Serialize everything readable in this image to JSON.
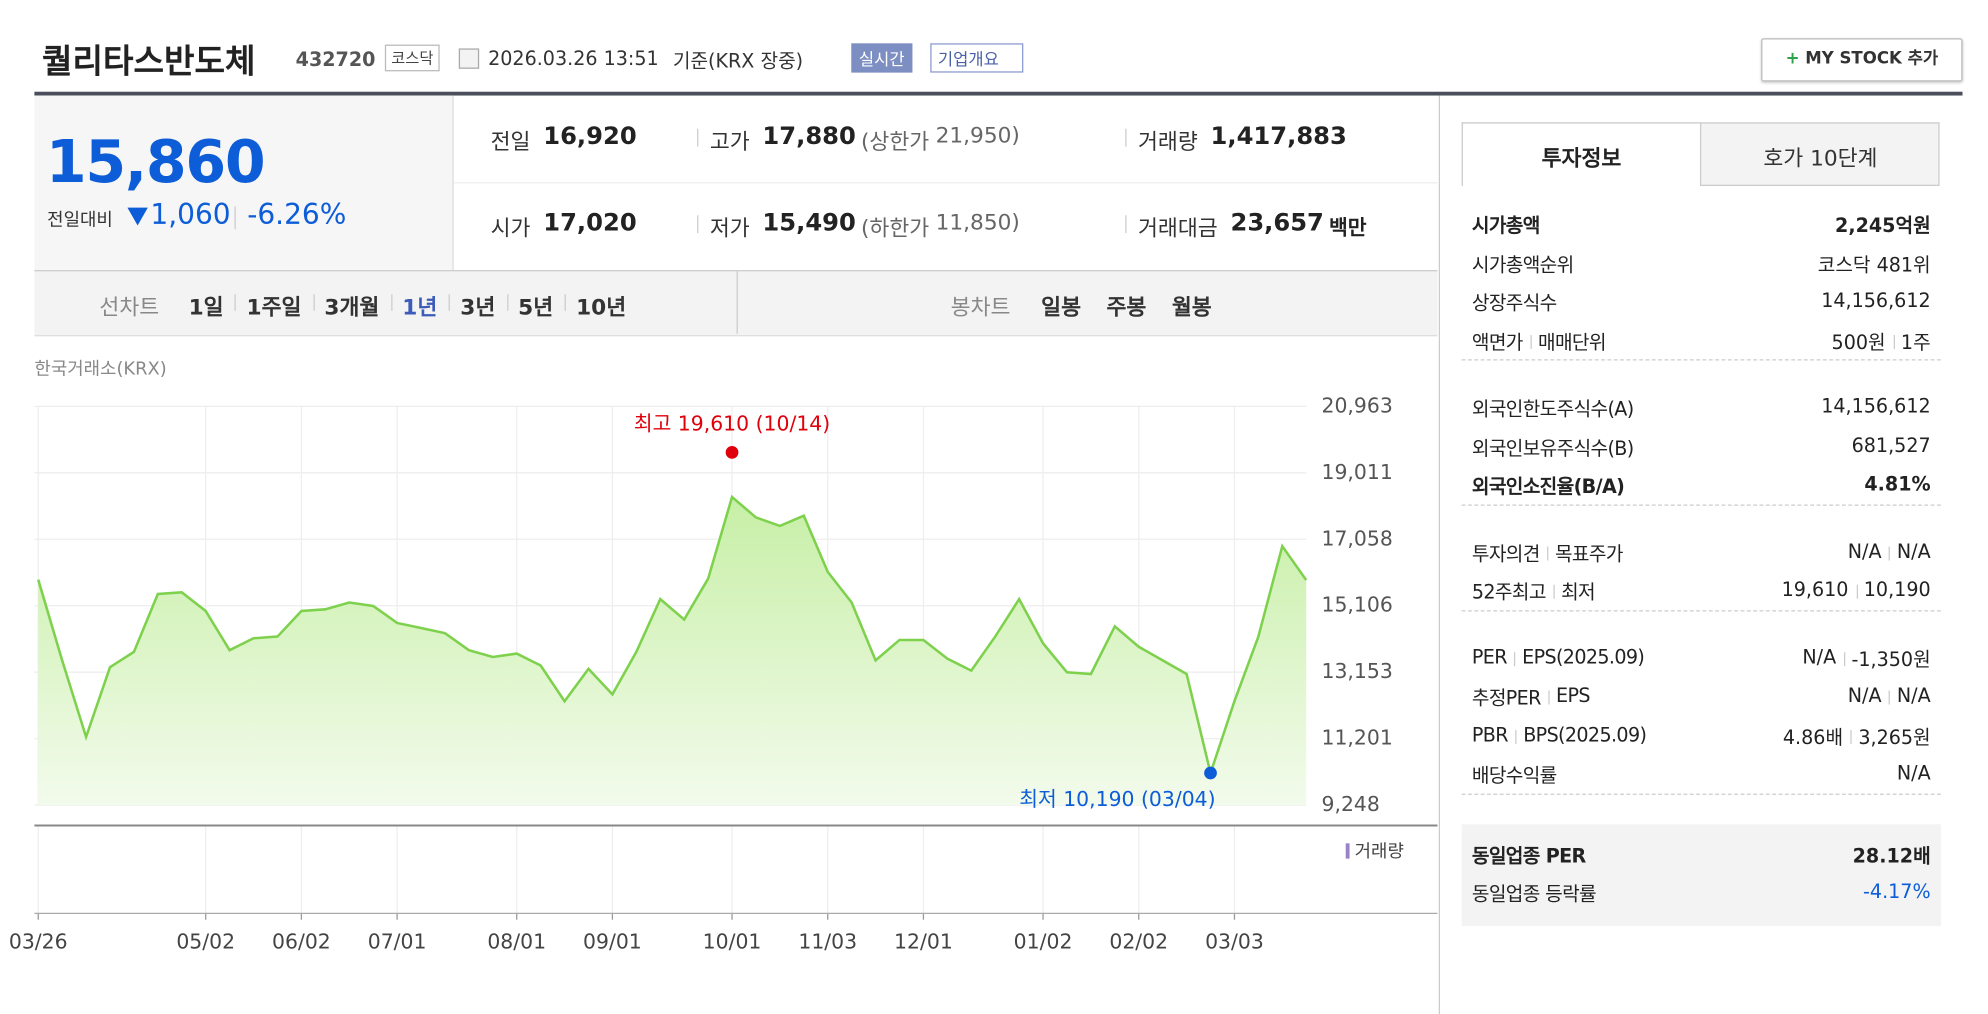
{
  "header": {
    "name": "퀄리타스반도체",
    "code": "432720",
    "market": "코스닥",
    "datetime": "2026.03.26 13:51",
    "basis": "기준(KRX 장중)",
    "realtime": "실시간",
    "company_info": "기업개요",
    "my_stock": "MY STOCK 추가"
  },
  "price": {
    "current": "15,860",
    "change_label": "전일대비",
    "change": "1,060",
    "change_pct": "-6.26%"
  },
  "summary": [
    [
      {
        "label": "전일",
        "value": "16,920"
      },
      {
        "label": "고가",
        "value": "17,880",
        "sub_label": "상한가",
        "sub_value": "21,950"
      },
      {
        "label": "거래량",
        "value": "1,417,883"
      }
    ],
    [
      {
        "label": "시가",
        "value": "17,020"
      },
      {
        "label": "저가",
        "value": "15,490",
        "sub_label": "하한가",
        "sub_value": "11,850"
      },
      {
        "label": "거래대금",
        "value": "23,657",
        "unit": "백만"
      }
    ]
  ],
  "chart_tabs": {
    "line_label": "선차트",
    "line": [
      "1일",
      "1주일",
      "3개월",
      "1년",
      "3년",
      "5년",
      "10년"
    ],
    "candle_label": "봉차트",
    "candle": [
      "일봉",
      "주봉",
      "월봉"
    ]
  },
  "chart_data": {
    "type": "line",
    "source": "한국거래소(KRX)",
    "color": "#7ed14d",
    "grid": true,
    "categories": [
      "03/26",
      null,
      null,
      null,
      null,
      null,
      null,
      "05/02",
      null,
      null,
      null,
      "06/02",
      null,
      null,
      null,
      "07/01",
      null,
      null,
      null,
      null,
      "08/01",
      null,
      null,
      null,
      "09/01",
      null,
      null,
      null,
      null,
      "10/01",
      null,
      null,
      null,
      "11/03",
      null,
      null,
      null,
      "12/01",
      null,
      null,
      null,
      null,
      "01/02",
      null,
      null,
      null,
      "02/02",
      null,
      null,
      null,
      "03/03",
      null,
      null,
      null
    ],
    "values": [
      15873,
      13500,
      11250,
      13300,
      13750,
      15450,
      15500,
      14950,
      13800,
      14150,
      14200,
      14950,
      15000,
      15200,
      15100,
      14600,
      14450,
      14300,
      13800,
      13600,
      13700,
      13350,
      12300,
      13250,
      12500,
      13750,
      15300,
      14700,
      15900,
      18300,
      17700,
      17450,
      17750,
      16100,
      15200,
      13500,
      14100,
      14100,
      13550,
      13200,
      14200,
      15300,
      14000,
      13150,
      13100,
      14500,
      13900,
      13500,
      13100,
      10190,
      12300,
      14200,
      16856,
      15860
    ],
    "ylim": [
      9248,
      20963
    ],
    "yticks": [
      {
        "value": 9248,
        "label": "9,248"
      },
      {
        "value": 11201,
        "label": "11,201"
      },
      {
        "value": 13153,
        "label": "13,153"
      },
      {
        "value": 15106,
        "label": "15,106"
      },
      {
        "value": 17058,
        "label": "17,058"
      },
      {
        "value": 19011,
        "label": "19,011"
      },
      {
        "value": 20963,
        "label": "20,963"
      }
    ],
    "high": {
      "value": 19610,
      "label": "최고 19,610 (10/14)"
    },
    "low": {
      "value": 10190,
      "label": "최저 10,190 (03/04)"
    },
    "volume_label": "거래량"
  },
  "invest": {
    "tabs": [
      "투자정보",
      "호가 10단계"
    ],
    "groups": [
      [
        {
          "label": [
            "시가총액"
          ],
          "value": [
            "2,245억원"
          ]
        },
        {
          "label": [
            "시가총액순위"
          ],
          "value": [
            "코스닥 481위"
          ]
        },
        {
          "label": [
            "상장주식수"
          ],
          "value": [
            "14,156,612"
          ]
        },
        {
          "label": [
            "액면가",
            "매매단위"
          ],
          "value": [
            "500원",
            "1주"
          ]
        }
      ],
      [
        {
          "label": [
            "외국인한도주식수(A)"
          ],
          "value": [
            "14,156,612"
          ]
        },
        {
          "label": [
            "외국인보유주식수(B)"
          ],
          "value": [
            "681,527"
          ]
        },
        {
          "label": [
            "외국인소진율(B/A)"
          ],
          "value": [
            "4.81%"
          ]
        }
      ],
      [
        {
          "label": [
            "투자의견",
            "목표주가"
          ],
          "value": [
            "N/A",
            "N/A"
          ]
        },
        {
          "label": [
            "52주최고",
            "최저"
          ],
          "value": [
            "19,610",
            "10,190"
          ]
        }
      ],
      [
        {
          "label": [
            "PER",
            "EPS(2025.09)"
          ],
          "value": [
            "N/A",
            "-1,350원"
          ]
        },
        {
          "label": [
            "추정PER",
            "EPS"
          ],
          "value": [
            "N/A",
            "N/A"
          ]
        },
        {
          "label": [
            "PBR",
            "BPS(2025.09)"
          ],
          "value": [
            "4.86배",
            "3,265원"
          ]
        },
        {
          "label": [
            "배당수익률"
          ],
          "value": [
            "N/A"
          ]
        }
      ],
      [
        {
          "label": [
            "동일업종 PER"
          ],
          "value": [
            "28.12배"
          ]
        },
        {
          "label": [
            "동일업종 등락률"
          ],
          "value": [
            "-4.17%"
          ]
        }
      ]
    ]
  }
}
